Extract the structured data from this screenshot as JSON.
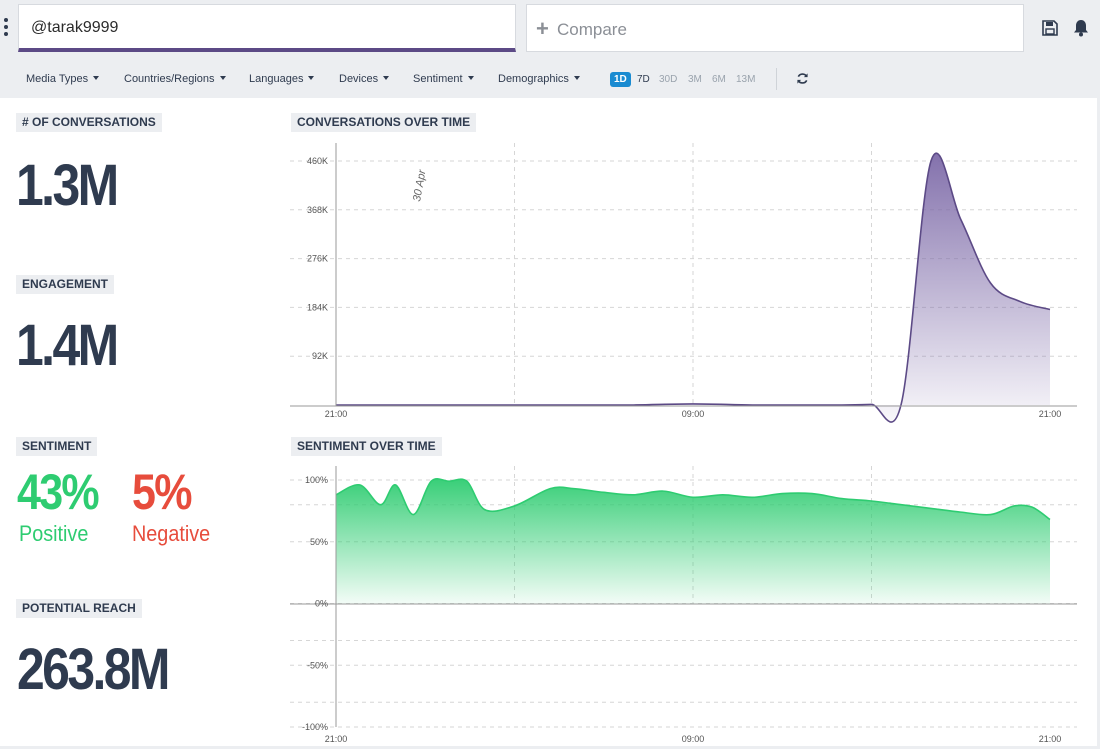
{
  "header": {
    "search_value": "@tarak9999",
    "compare_placeholder": "Compare",
    "icons": {
      "menu": "kebab-menu-icon",
      "save": "save-icon",
      "notifications": "bell-icon"
    }
  },
  "filters": {
    "items": [
      "Media Types",
      "Countries/Regions",
      "Languages",
      "Devices",
      "Sentiment",
      "Demographics"
    ],
    "ranges": [
      "1D",
      "7D",
      "30D",
      "3M",
      "6M",
      "13M"
    ],
    "active_range": "1D",
    "refresh_icon": "refresh-icon"
  },
  "metrics": {
    "conversations": {
      "title": "# OF CONVERSATIONS",
      "value": "1.3M"
    },
    "engagement": {
      "title": "ENGAGEMENT",
      "value": "1.4M"
    },
    "sentiment": {
      "title": "SENTIMENT",
      "positive_value": "43%",
      "positive_label": "Positive",
      "negative_value": "5%",
      "negative_label": "Negative"
    },
    "reach": {
      "title": "POTENTIAL REACH",
      "value": "263.8M"
    }
  },
  "colors": {
    "text": "#2f3b4f",
    "positive": "#2ecc71",
    "negative": "#e74c3c",
    "volume_line": "#5c4a86",
    "sentiment_line": "#2ecc71",
    "active_range": "#1a8bd1"
  },
  "chart_data": [
    {
      "type": "area",
      "title": "CONVERSATIONS OVER TIME",
      "date_annotation": "30 Apr",
      "x_ticks": [
        "21:00",
        "09:00",
        "21:00"
      ],
      "y_ticks": [
        "92K",
        "184K",
        "276K",
        "368K",
        "460K"
      ],
      "ylim": [
        0,
        460000
      ],
      "x_hours": [
        0,
        2,
        4,
        6,
        8,
        10,
        12,
        14,
        16,
        17,
        18,
        19,
        20,
        21,
        22,
        23,
        24
      ],
      "values": [
        0,
        0,
        0,
        0,
        0,
        0,
        2000,
        0,
        0,
        0,
        1000,
        2000,
        460000,
        350000,
        230000,
        195000,
        180000
      ],
      "grid": true
    },
    {
      "type": "area",
      "title": "SENTIMENT OVER TIME",
      "x_ticks": [
        "21:00",
        "09:00",
        "21:00"
      ],
      "y_ticks": [
        "100%",
        "50%",
        "0%",
        "-50%",
        "-100%"
      ],
      "ylim": [
        -100,
        100
      ],
      "x_hours": [
        0,
        0.8,
        1.5,
        2,
        2.6,
        3.2,
        3.8,
        4.4,
        5,
        6,
        7.2,
        8,
        9,
        10,
        11,
        12,
        13,
        14,
        15,
        16,
        17,
        18,
        19,
        20,
        21,
        22,
        22.8,
        23.4,
        24
      ],
      "values": [
        88,
        96,
        80,
        96,
        72,
        99,
        99,
        99,
        76,
        79,
        93,
        93,
        90,
        88,
        91,
        86,
        88,
        86,
        89,
        89,
        85,
        83,
        80,
        77,
        74,
        72,
        79,
        78,
        68
      ],
      "grid": true
    }
  ]
}
